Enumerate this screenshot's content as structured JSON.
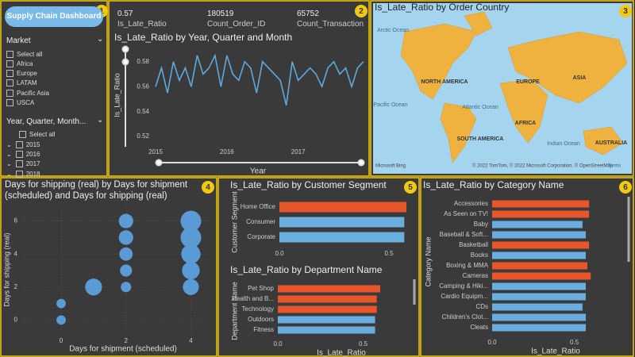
{
  "sidebar": {
    "button": "Supply Chain Dashboard",
    "filters": [
      {
        "title": "Market",
        "items": [
          "Select all",
          "Africa",
          "Europe",
          "LATAM",
          "Pacific Asia",
          "USCA"
        ]
      },
      {
        "title": "Year, Quarter, Month...",
        "items": [
          "Select all",
          "2015",
          "2016",
          "2017",
          "2018"
        ]
      }
    ]
  },
  "badges": [
    1,
    2,
    3,
    4,
    5,
    6
  ],
  "cards": [
    {
      "value": 0.57,
      "label": "Is_Late_Ratio"
    },
    {
      "value": 180519,
      "label": "Count_Order_ID"
    },
    {
      "value": 65752,
      "label": "Count_Transaction"
    }
  ],
  "map": {
    "title": "Is_Late_Ratio by Order Country",
    "labels": [
      "Arctic Ocean",
      "NORTH AMERICA",
      "EUROPE",
      "ASIA",
      "Pacific Ocean",
      "Atlantic Ocean",
      "AFRICA",
      "SOUTH AMERICA",
      "Indian Ocean",
      "AUSTRALIA"
    ],
    "logo": "Microsoft Bing",
    "attribution": "© 2022 TomTom, © 2022 Microsoft Corporation, © OpenStreetMap",
    "terms": "Terms"
  },
  "chart_data": [
    {
      "type": "line",
      "title": "Is_Late_Ratio by Year, Quarter and Month",
      "y_label": "Is_Late_Ratio",
      "x_label": "Year",
      "categories": [
        "2015",
        null,
        null,
        null,
        null,
        null,
        null,
        null,
        null,
        null,
        null,
        null,
        "2016",
        null,
        null,
        null,
        null,
        null,
        null,
        null,
        null,
        null,
        null,
        null,
        "2017",
        null,
        null,
        null,
        null,
        null,
        null,
        null,
        null,
        null,
        null,
        null
      ],
      "values": [
        0.56,
        0.575,
        0.555,
        0.58,
        0.565,
        0.575,
        0.56,
        0.585,
        0.57,
        0.575,
        0.585,
        0.56,
        0.585,
        0.57,
        0.565,
        0.58,
        0.575,
        0.555,
        0.58,
        0.575,
        0.57,
        0.565,
        0.545,
        0.58,
        0.565,
        0.57,
        0.575,
        0.57,
        0.56,
        0.575,
        0.58,
        0.57,
        0.575,
        0.56,
        0.575,
        0.58
      ],
      "color": "#5ea8dc",
      "ylim": [
        0.515,
        0.59
      ],
      "yticks": [
        0.52,
        0.54,
        0.56,
        0.58
      ],
      "grid": false
    },
    {
      "type": "scatter",
      "title": "Days for shipping (real) by Days for shipment (scheduled) and Days for shipping (real)",
      "x_label": "Days for shipment (scheduled)",
      "y_label": "Days for shipping (real)",
      "x": [
        0,
        0,
        1,
        2,
        2,
        2,
        2,
        2,
        4,
        4,
        4,
        4,
        4
      ],
      "y": [
        0,
        1,
        2,
        2,
        3,
        4,
        5,
        6,
        2,
        3,
        4,
        5,
        6
      ],
      "sizes": [
        1000,
        1000,
        7000,
        1500,
        2500,
        3500,
        4500,
        4500,
        6000,
        8000,
        10000,
        12000,
        12000
      ],
      "color": "#5b9bd5",
      "xlim": [
        -1.2,
        4.6
      ],
      "ylim": [
        -0.8,
        6.8
      ],
      "xticks": [
        0,
        2,
        4
      ],
      "yticks": [
        0,
        2,
        4,
        6
      ],
      "grid": true
    },
    {
      "type": "hbar",
      "title": "Is_Late_Ratio by Customer Segment",
      "y_label": "Customer Segment",
      "categories": [
        "Home Office",
        "Consumer",
        "Corporate"
      ],
      "values": [
        0.58,
        0.57,
        0.57
      ],
      "colors": [
        "#e8552a",
        "#6aaee0",
        "#6aaee0"
      ],
      "xlim": [
        0,
        0.58
      ],
      "xticks": [
        {
          "value": 0,
          "label": "0.0"
        },
        0.5
      ]
    },
    {
      "type": "hbar",
      "title": "Is_Late_Ratio by Department Name",
      "y_label": "Department Name",
      "x_label": "Is_Late_Ratio",
      "categories": [
        "Pet Shop",
        "Health and B...",
        "Technology",
        "Outdoors",
        "Fitness"
      ],
      "values": [
        0.6,
        0.58,
        0.58,
        0.57,
        0.57
      ],
      "colors": [
        "#e8552a",
        "#e8552a",
        "#e8552a",
        "#6aaee0",
        "#6aaee0"
      ],
      "xlim": [
        0,
        0.6
      ],
      "xticks": [
        {
          "value": 0,
          "label": "0.0"
        },
        0.5
      ]
    },
    {
      "type": "hbar",
      "title": "Is_Late_Ratio by Category Name",
      "y_label": "Category Name",
      "x_label": "Is_Late_Ratio",
      "categories": [
        "Accessories",
        "As Seen on TV!",
        "Baby",
        "Baseball & Soft...",
        "Basketball",
        "Books",
        "Boxing & MMA",
        "Cameras",
        "Camping & Hiki...",
        "Cardio Equipm...",
        "CDs",
        "Children's Clot...",
        "Cleats"
      ],
      "values": [
        0.59,
        0.59,
        0.55,
        0.57,
        0.59,
        0.57,
        0.58,
        0.6,
        0.57,
        0.57,
        0.55,
        0.57,
        0.57
      ],
      "colors": [
        "#e8552a",
        "#e8552a",
        "#6aaee0",
        "#6aaee0",
        "#e8552a",
        "#6aaee0",
        "#e8552a",
        "#e8552a",
        "#6aaee0",
        "#6aaee0",
        "#6aaee0",
        "#6aaee0",
        "#6aaee0"
      ],
      "xlim": [
        0,
        0.6
      ],
      "xticks": [
        {
          "value": 0,
          "label": "0.0"
        },
        0.5
      ]
    }
  ]
}
